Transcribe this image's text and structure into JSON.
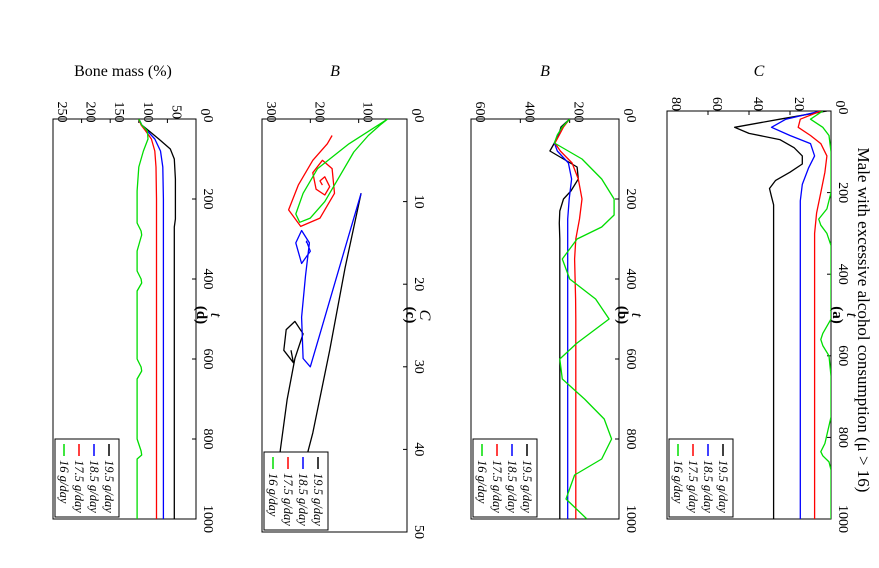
{
  "figure_title": "Male with excessive alcohol consumption (μ > 16)",
  "chart_data": [
    {
      "id": "a",
      "panel_label": "(a)",
      "type": "line",
      "xlabel": "t",
      "ylabel": "C",
      "xlim": [
        0,
        1000
      ],
      "ylim": [
        0,
        80
      ],
      "xticks": [
        0,
        200,
        400,
        600,
        800,
        1000
      ],
      "yticks": [
        0,
        20,
        40,
        60,
        80
      ],
      "legend_position": "bottom-right",
      "series": [
        {
          "name": "19.5 g/day",
          "color": "#000000",
          "x": [
            0,
            20,
            40,
            55,
            70,
            90,
            110,
            130,
            150,
            170,
            190,
            210,
            230,
            260,
            300,
            400,
            600,
            800,
            1000
          ],
          "y": [
            2,
            25,
            47,
            40,
            25,
            18,
            14,
            14,
            20,
            27,
            30,
            29,
            28,
            28,
            28,
            28,
            28,
            28,
            28
          ]
        },
        {
          "name": "18.5 g/day",
          "color": "#0000ff",
          "x": [
            0,
            20,
            40,
            60,
            80,
            110,
            140,
            180,
            220,
            300,
            500,
            800,
            1000
          ],
          "y": [
            5,
            22,
            29,
            20,
            10,
            8,
            11,
            14,
            15,
            15,
            15,
            15,
            15
          ]
        },
        {
          "name": "17.5 g/day",
          "color": "#ff0000",
          "x": [
            0,
            20,
            40,
            60,
            80,
            110,
            150,
            200,
            250,
            300,
            350,
            400,
            500,
            600,
            700,
            800,
            1000
          ],
          "y": [
            5,
            15,
            16,
            10,
            5,
            2,
            3,
            5,
            7,
            8,
            8,
            8,
            8,
            8,
            8,
            8,
            8
          ]
        },
        {
          "name": "16 g/day",
          "color": "#00dd00",
          "x": [
            0,
            20,
            40,
            60,
            100,
            150,
            200,
            240,
            265,
            280,
            300,
            330,
            380,
            450,
            510,
            545,
            560,
            575,
            600,
            650,
            750,
            815,
            835,
            845,
            860,
            880,
            930,
            1000
          ],
          "y": [
            4,
            10,
            4,
            1,
            0,
            0,
            0,
            2,
            6,
            5,
            2,
            0,
            0,
            0,
            0,
            4,
            5,
            4,
            1,
            0,
            0,
            3,
            5,
            4,
            1,
            0,
            0,
            0
          ]
        }
      ]
    },
    {
      "id": "b",
      "panel_label": "(b)",
      "type": "line",
      "xlabel": "t",
      "ylabel": "B",
      "xlim": [
        0,
        1000
      ],
      "ylim": [
        0,
        600
      ],
      "xticks": [
        0,
        200,
        400,
        600,
        800,
        1000
      ],
      "yticks": [
        0,
        200,
        400,
        600
      ],
      "legend_position": "bottom-right",
      "series": [
        {
          "name": "19.5 g/day",
          "color": "#000000",
          "x": [
            0,
            20,
            40,
            60,
            80,
            100,
            120,
            150,
            180,
            200,
            230,
            260,
            300,
            400,
            600,
            800,
            1000
          ],
          "y": [
            200,
            235,
            245,
            262,
            280,
            225,
            170,
            165,
            195,
            225,
            240,
            242,
            240,
            240,
            240,
            240,
            240
          ]
        },
        {
          "name": "18.5 g/day",
          "color": "#0000ff",
          "x": [
            0,
            20,
            40,
            60,
            80,
            110,
            150,
            200,
            250,
            300,
            400,
            600,
            800,
            1000
          ],
          "y": [
            200,
            230,
            248,
            262,
            250,
            205,
            192,
            202,
            208,
            208,
            208,
            208,
            208,
            208
          ]
        },
        {
          "name": "17.5 g/day",
          "color": "#ff0000",
          "x": [
            0,
            20,
            40,
            60,
            80,
            110,
            150,
            200,
            250,
            300,
            350,
            400,
            450,
            500,
            600,
            700,
            800,
            1000
          ],
          "y": [
            200,
            225,
            242,
            260,
            238,
            190,
            165,
            150,
            160,
            175,
            180,
            178,
            176,
            175,
            175,
            175,
            175,
            175
          ]
        },
        {
          "name": "16 g/day",
          "color": "#00dd00",
          "x": [
            0,
            20,
            40,
            60,
            100,
            150,
            200,
            240,
            270,
            300,
            350,
            400,
            450,
            500,
            560,
            600,
            650,
            700,
            750,
            800,
            850,
            890,
            950,
            1000
          ],
          "y": [
            200,
            230,
            250,
            262,
            150,
            70,
            20,
            20,
            70,
            170,
            230,
            200,
            95,
            40,
            170,
            240,
            230,
            140,
            60,
            30,
            70,
            180,
            215,
            130
          ]
        }
      ]
    },
    {
      "id": "c",
      "panel_label": "(c)",
      "type": "line",
      "xlabel": "C",
      "ylabel": "B",
      "xlim": [
        0,
        50
      ],
      "ylim": [
        0,
        300
      ],
      "xticks": [
        0,
        10,
        20,
        30,
        40,
        50
      ],
      "yticks": [
        0,
        100,
        200,
        300
      ],
      "legend_position": "bottom-right",
      "series": [
        {
          "name": "19.5 g/day",
          "color": "#000000",
          "x": [
            9,
            18,
            28,
            38,
            47,
            49.5,
            46,
            40,
            34,
            29,
            26,
            24.5,
            25.5,
            28,
            29.5,
            28,
            28
          ],
          "y": [
            95,
            128,
            160,
            195,
            235,
            272,
            272,
            262,
            248,
            232,
            215,
            232,
            250,
            255,
            235,
            240,
            240
          ]
        },
        {
          "name": "18.5 g/day",
          "color": "#0000ff",
          "x": [
            9,
            14,
            20,
            26,
            30,
            29,
            24,
            19,
            15,
            13.5,
            15,
            17.5,
            16,
            14.8,
            15
          ],
          "y": [
            95,
            120,
            150,
            180,
            200,
            215,
            218,
            210,
            202,
            218,
            230,
            218,
            200,
            208,
            208
          ]
        },
        {
          "name": "17.5 g/day",
          "color": "#ff0000",
          "x": [
            2,
            3,
            5,
            8,
            11,
            13,
            12,
            9,
            6,
            5,
            6.5,
            8.5,
            9.2,
            8.2,
            7,
            7.5,
            8,
            8
          ],
          "y": [
            155,
            165,
            195,
            225,
            245,
            220,
            180,
            150,
            155,
            175,
            195,
            188,
            170,
            160,
            170,
            180,
            175,
            175
          ]
        },
        {
          "name": "16 g/day",
          "color": "#00dd00",
          "x": [
            0,
            3,
            6,
            9,
            11.5,
            12.5,
            12,
            10,
            7,
            4,
            2,
            0.7,
            0
          ],
          "y": [
            40,
            120,
            185,
            215,
            230,
            222,
            200,
            170,
            140,
            110,
            80,
            55,
            40
          ]
        }
      ]
    },
    {
      "id": "d",
      "panel_label": "(d)",
      "type": "line",
      "xlabel": "t",
      "ylabel": "Bone mass (%)",
      "xlim": [
        0,
        1000
      ],
      "ylim": [
        0,
        250
      ],
      "xticks": [
        0,
        200,
        400,
        600,
        800,
        1000
      ],
      "yticks": [
        0,
        50,
        100,
        150,
        200,
        250
      ],
      "legend_position": "bottom-right",
      "series": [
        {
          "name": "19.5 g/day",
          "color": "#000000",
          "x": [
            0,
            15,
            30,
            50,
            75,
            100,
            150,
            200,
            250,
            270,
            300,
            400,
            600,
            800,
            1000
          ],
          "y": [
            100,
            95,
            82,
            65,
            45,
            38,
            36,
            36,
            36,
            38,
            38,
            38,
            38,
            38,
            38
          ]
        },
        {
          "name": "18.5 g/day",
          "color": "#0000ff",
          "x": [
            0,
            15,
            30,
            50,
            80,
            120,
            200,
            300,
            500,
            800,
            1000
          ],
          "y": [
            100,
            95,
            85,
            72,
            62,
            58,
            57,
            57,
            57,
            57,
            57
          ]
        },
        {
          "name": "17.5 g/day",
          "color": "#ff0000",
          "x": [
            0,
            15,
            30,
            50,
            80,
            120,
            200,
            300,
            500,
            800,
            1000
          ],
          "y": [
            100,
            96,
            88,
            78,
            72,
            70,
            69,
            69,
            69,
            69,
            69
          ]
        },
        {
          "name": "16 g/day",
          "color": "#00dd00",
          "x": [
            0,
            15,
            30,
            50,
            80,
            120,
            180,
            260,
            280,
            290,
            300,
            330,
            380,
            400,
            410,
            430,
            500,
            600,
            620,
            630,
            650,
            700,
            800,
            830,
            840,
            850,
            880,
            950,
            1000
          ],
          "y": [
            100,
            95,
            85,
            84,
            92,
            100,
            103,
            103,
            96,
            95,
            97,
            103,
            103,
            96,
            95,
            103,
            103,
            103,
            96,
            95,
            103,
            103,
            103,
            96,
            95,
            103,
            103,
            103,
            103
          ]
        }
      ]
    }
  ]
}
